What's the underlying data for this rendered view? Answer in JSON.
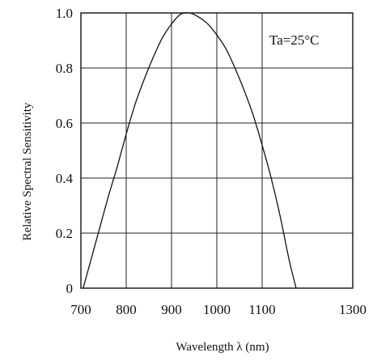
{
  "chart_data": {
    "type": "line",
    "title": "",
    "xlabel": "Wavelength  λ  (nm)",
    "ylabel": "Relative Spectral Sensitivity",
    "annotation": "Ta=25°C",
    "xlim": [
      700,
      1300
    ],
    "ylim": [
      0,
      1.0
    ],
    "x_ticks": [
      700,
      800,
      900,
      1000,
      1100,
      1300
    ],
    "x_tick_labels": [
      "700",
      "800",
      "900",
      "1000",
      "1100",
      "1300"
    ],
    "y_ticks": [
      0,
      0.2,
      0.4,
      0.6,
      0.8,
      1.0
    ],
    "y_tick_labels": [
      "0",
      "0.2",
      "0.4",
      "0.6",
      "0.8",
      "1.0"
    ],
    "grid": true,
    "series": [
      {
        "x": [
          705,
          720,
          740,
          760,
          780,
          800,
          820,
          840,
          860,
          880,
          900,
          920,
          940,
          960,
          980,
          1000,
          1020,
          1040,
          1060,
          1080,
          1100,
          1120,
          1140,
          1160,
          1175
        ],
        "y": [
          0.0,
          0.09,
          0.21,
          0.33,
          0.44,
          0.56,
          0.67,
          0.76,
          0.84,
          0.91,
          0.96,
          0.995,
          1.0,
          0.985,
          0.96,
          0.92,
          0.87,
          0.8,
          0.72,
          0.63,
          0.52,
          0.4,
          0.26,
          0.1,
          0.0
        ]
      }
    ]
  }
}
